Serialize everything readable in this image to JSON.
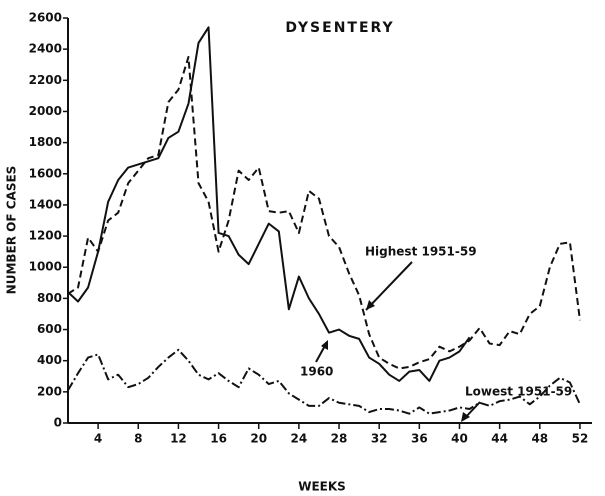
{
  "chart_data": {
    "type": "line",
    "title": "DYSENTERY",
    "x_label": "WEEKS",
    "y_label": "NUMBER OF CASES",
    "x": [
      1,
      2,
      3,
      4,
      5,
      6,
      7,
      8,
      9,
      10,
      11,
      12,
      13,
      14,
      15,
      16,
      17,
      18,
      19,
      20,
      21,
      22,
      23,
      24,
      25,
      26,
      27,
      28,
      29,
      30,
      31,
      32,
      33,
      34,
      35,
      36,
      37,
      38,
      39,
      40,
      41,
      42,
      43,
      44,
      45,
      46,
      47,
      48,
      49,
      50,
      51,
      52
    ],
    "xlim": [
      1,
      53
    ],
    "xticks": [
      4,
      8,
      12,
      16,
      20,
      24,
      28,
      32,
      36,
      40,
      44,
      48,
      52
    ],
    "ylim": [
      0,
      2600
    ],
    "yticks": [
      0,
      200,
      400,
      600,
      800,
      1000,
      1200,
      1400,
      1600,
      1800,
      2000,
      2200,
      2400,
      2600
    ],
    "series": [
      {
        "name": "1960",
        "color": "#111111",
        "dash": "none",
        "values": [
          840,
          780,
          870,
          1100,
          1420,
          1560,
          1640,
          1660,
          1680,
          1700,
          1830,
          1870,
          2050,
          2440,
          2540,
          1220,
          1200,
          1080,
          1020,
          1150,
          1280,
          1230,
          730,
          940,
          800,
          700,
          580,
          600,
          560,
          540,
          420,
          380,
          310,
          270,
          330,
          340,
          270,
          400,
          420,
          460,
          550,
          null,
          null,
          null,
          null,
          null,
          null,
          null,
          null,
          null,
          null,
          null
        ]
      },
      {
        "name": "Highest 1951-59",
        "color": "#111111",
        "dash": "7,4",
        "values": [
          830,
          870,
          1190,
          1100,
          1300,
          1350,
          1540,
          1620,
          1700,
          1720,
          2060,
          2140,
          2350,
          1540,
          1420,
          1100,
          1300,
          1620,
          1560,
          1640,
          1360,
          1350,
          1360,
          1220,
          1490,
          1440,
          1200,
          1130,
          960,
          820,
          570,
          420,
          380,
          350,
          360,
          390,
          410,
          490,
          460,
          490,
          530,
          610,
          510,
          500,
          590,
          570,
          700,
          750,
          1000,
          1150,
          1160,
          660
        ]
      },
      {
        "name": "Lowest 1951-59",
        "color": "#111111",
        "dash": "9,3,2,3",
        "values": [
          210,
          320,
          420,
          440,
          280,
          310,
          230,
          250,
          290,
          360,
          420,
          470,
          400,
          310,
          280,
          320,
          270,
          230,
          350,
          310,
          250,
          270,
          190,
          150,
          110,
          110,
          160,
          130,
          120,
          110,
          70,
          90,
          90,
          80,
          60,
          100,
          60,
          70,
          80,
          100,
          90,
          130,
          110,
          140,
          150,
          170,
          120,
          170,
          240,
          290,
          260,
          120
        ]
      }
    ]
  }
}
